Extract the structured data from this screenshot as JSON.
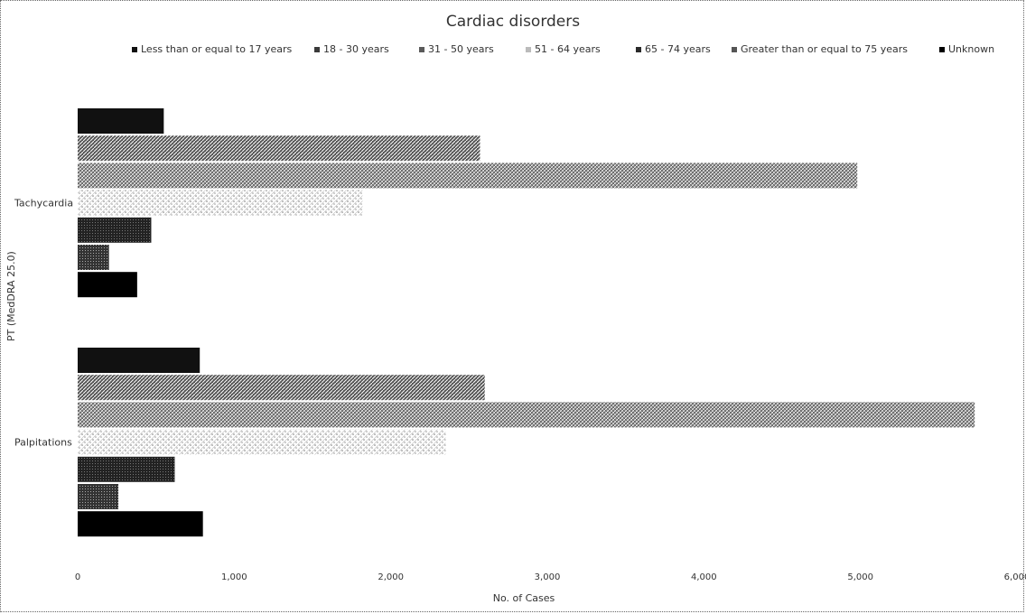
{
  "chart_data": {
    "type": "bar",
    "orientation": "horizontal",
    "title": "Cardiac disorders",
    "xlabel": "No. of Cases",
    "ylabel": "PT (MedDRA 25.0)",
    "xlim": [
      0,
      6000
    ],
    "x_ticks": [
      "0",
      "1,000",
      "2,000",
      "3,000",
      "4,000",
      "5,000",
      "6,000"
    ],
    "legend_position": "top",
    "grid": false,
    "categories": [
      "Tachycardia",
      "Palpitations"
    ],
    "series": [
      {
        "name": "Less than or equal to 17 years",
        "values": [
          550,
          780
        ],
        "color": "#111111"
      },
      {
        "name": "18 - 30 years",
        "values": [
          2570,
          2600
        ],
        "color": "#3a3a3a"
      },
      {
        "name": "31 - 50 years",
        "values": [
          4980,
          5730
        ],
        "color": "#5a5a5a"
      },
      {
        "name": "51 - 64 years",
        "values": [
          1820,
          2350
        ],
        "color": "#c8c8c8"
      },
      {
        "name": "65 - 74 years",
        "values": [
          470,
          620
        ],
        "color": "#2a2a2a"
      },
      {
        "name": "Greater than or equal to 75 years",
        "values": [
          200,
          260
        ],
        "color": "#555555"
      },
      {
        "name": "Unknown",
        "values": [
          380,
          800
        ],
        "color": "#000000"
      }
    ]
  }
}
